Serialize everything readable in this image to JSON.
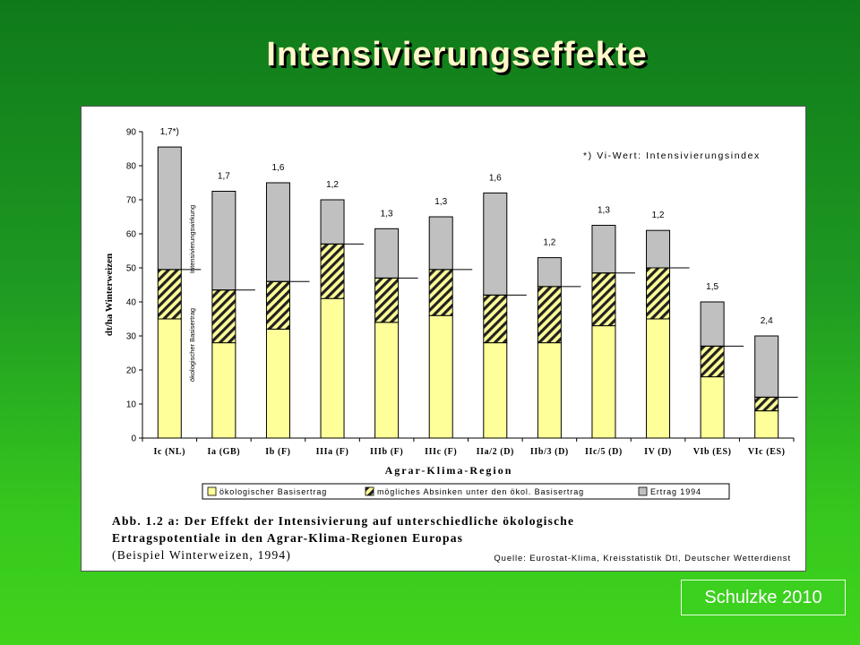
{
  "slide": {
    "title": "Intensivierungseffekte",
    "credit": "Schulzke 2010"
  },
  "chart_data": {
    "type": "bar",
    "stacked": true,
    "ylabel": "dt/ha Winterweizen",
    "xlabel": "Agrar-Klima-Region",
    "ylim": [
      0,
      90
    ],
    "yticks": [
      0,
      10,
      20,
      30,
      40,
      50,
      60,
      70,
      80,
      90
    ],
    "categories": [
      "Ic (NL)",
      "Ia (GB)",
      "Ib (F)",
      "IIIa (F)",
      "IIIb (F)",
      "IIIc (F)",
      "IIa/2 (D)",
      "IIb/3 (D)",
      "IIc/5 (D)",
      "IV (D)",
      "VIb (ES)",
      "VIc (ES)"
    ],
    "series": [
      {
        "name": "ökologischer Basisertrag",
        "color": "#ffff99",
        "values": [
          35,
          28,
          32,
          41,
          34,
          36,
          28,
          28,
          33,
          35,
          18,
          8
        ]
      },
      {
        "name": "mögliches Absinken unter den ökol. Basisertrag",
        "color": "#ffff99",
        "pattern": "hatch",
        "values": [
          14.5,
          15.5,
          14,
          16,
          13,
          13.5,
          14,
          16.5,
          15.5,
          15,
          9,
          4
        ]
      },
      {
        "name": "Ertrag 1994",
        "color": "#c0c0c0",
        "values": [
          36,
          29,
          29,
          13,
          14.5,
          15.5,
          30,
          8.5,
          14,
          11,
          13,
          18
        ]
      }
    ],
    "vi_labels": [
      "1,7*)",
      "1,7",
      "1,6",
      "1,2",
      "1,3",
      "1,3",
      "1,6",
      "1,2",
      "1,3",
      "1,2",
      "1,5",
      "2,4"
    ],
    "vertical_labels": {
      "upper": "Intensivierungswirkung",
      "lower": "ökologischer Basisertrag"
    },
    "footnote": "*) Vi-Wert: Intensivierungsindex",
    "caption": [
      "Abb. 1.2 a: Der Effekt der Intensivierung auf unterschiedliche ökologische",
      "Ertragspotentiale in den Agrar-Klima-Regionen Europas",
      "(Beispiel Winterweizen, 1994)"
    ],
    "source": "Quelle: Eurostat-Klima, Kreisstatistik Dtl, Deutscher Wetterdienst",
    "legend_position": "bottom"
  }
}
